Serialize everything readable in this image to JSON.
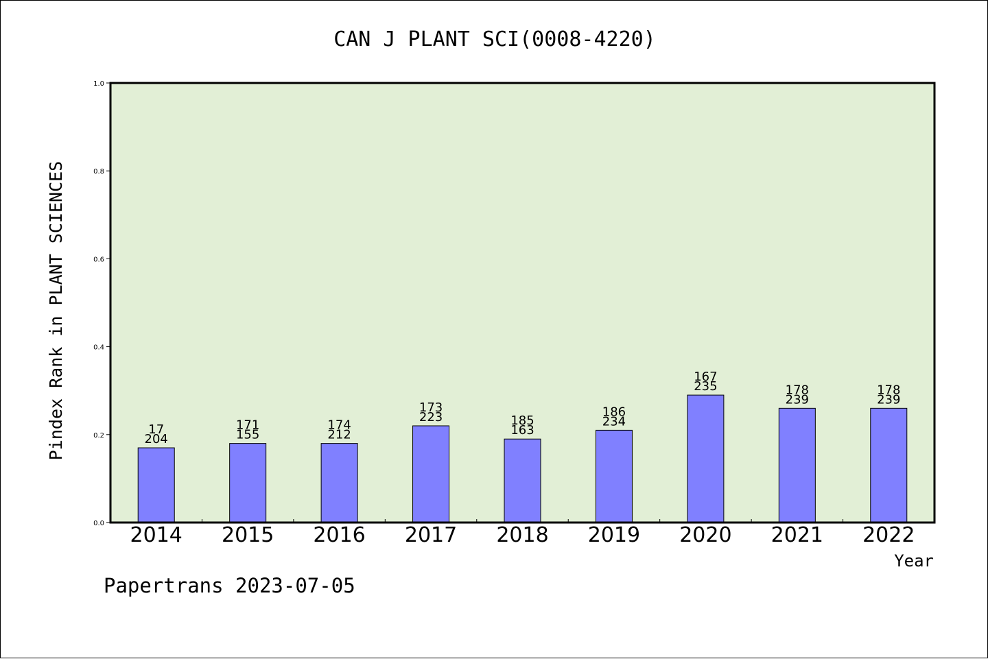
{
  "chart_data": {
    "type": "bar",
    "title": "CAN J PLANT SCI(0008-4220)",
    "xlabel": "Year",
    "ylabel": "Pindex Rank in PLANT SCIENCES",
    "ylim": [
      0,
      1.0
    ],
    "yticks": [
      "0.0",
      "0.2",
      "0.4",
      "0.6",
      "0.8",
      "1.0"
    ],
    "categories": [
      "2014",
      "2015",
      "2016",
      "2017",
      "2018",
      "2019",
      "2020",
      "2021",
      "2022"
    ],
    "values": [
      0.17,
      0.18,
      0.18,
      0.22,
      0.19,
      0.21,
      0.29,
      0.26,
      0.26
    ],
    "labels_top": [
      "17",
      "171",
      "174",
      "173",
      "185",
      "186",
      "167",
      "178",
      "178"
    ],
    "labels_bottom": [
      "204",
      "155",
      "212",
      "223",
      "163",
      "234",
      "235",
      "239",
      "239"
    ],
    "grid": false,
    "plot_background": "#e2efd6",
    "bar_color": "#8080ff"
  },
  "footer": "Papertrans 2023-07-05"
}
